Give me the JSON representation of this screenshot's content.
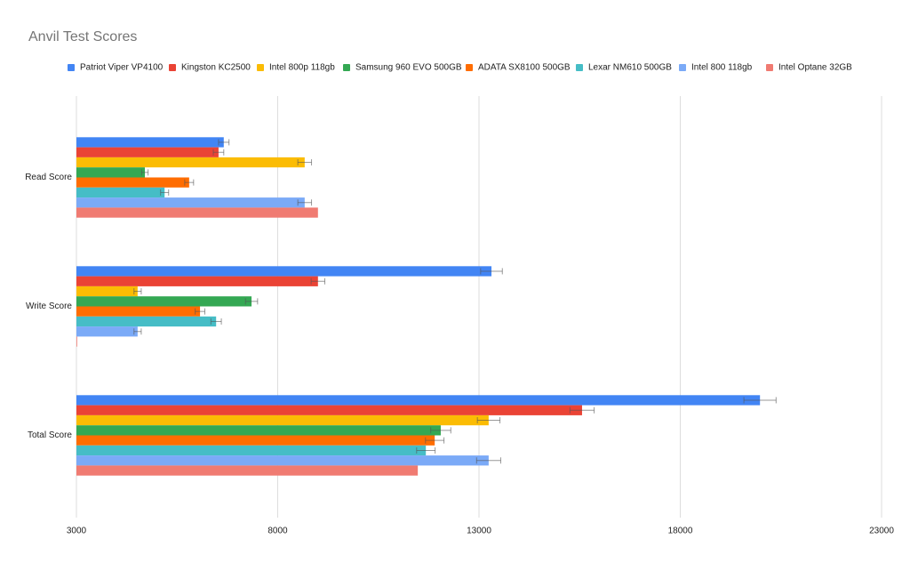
{
  "chart_data": {
    "type": "bar",
    "orientation": "horizontal",
    "title": "Anvil Test Scores",
    "categories": [
      "Read Score",
      "Write Score",
      "Total Score"
    ],
    "series": [
      {
        "name": "Patriot Viper VP4100",
        "color": "#4285f4",
        "values": [
          6660,
          13310,
          19980
        ],
        "errors": [
          130,
          270,
          400
        ]
      },
      {
        "name": "Kingston KC2500",
        "color": "#ea4335",
        "values": [
          6530,
          9000,
          15560
        ],
        "errors": [
          130,
          170,
          300
        ]
      },
      {
        "name": "Intel 800p 118gb",
        "color": "#fbbc04",
        "values": [
          8670,
          4520,
          13240
        ],
        "errors": [
          170,
          90,
          280
        ]
      },
      {
        "name": "Samsung 960 EVO 500GB",
        "color": "#34a853",
        "values": [
          4700,
          7350,
          12050
        ],
        "errors": [
          80,
          150,
          250
        ]
      },
      {
        "name": "ADATA SX8100 500GB",
        "color": "#ff6d01",
        "values": [
          5800,
          6070,
          11900
        ],
        "errors": [
          110,
          120,
          230
        ]
      },
      {
        "name": "Lexar NM610 500GB",
        "color": "#46bdc6",
        "values": [
          5190,
          6470,
          11680
        ],
        "errors": [
          100,
          130,
          230
        ]
      },
      {
        "name": "Intel 800 118gb",
        "color": "#7baaf7",
        "values": [
          8670,
          4520,
          13240
        ],
        "errors": [
          170,
          90,
          300
        ]
      },
      {
        "name": "Intel Optane 32GB",
        "color": "#f07b72",
        "values": [
          9000,
          3000,
          11480
        ],
        "errors": [
          null,
          null,
          null
        ]
      }
    ],
    "xlim": [
      3000,
      23000
    ],
    "xticks": [
      3000,
      8000,
      13000,
      18000,
      23000
    ],
    "grid": true,
    "legend": "top"
  }
}
